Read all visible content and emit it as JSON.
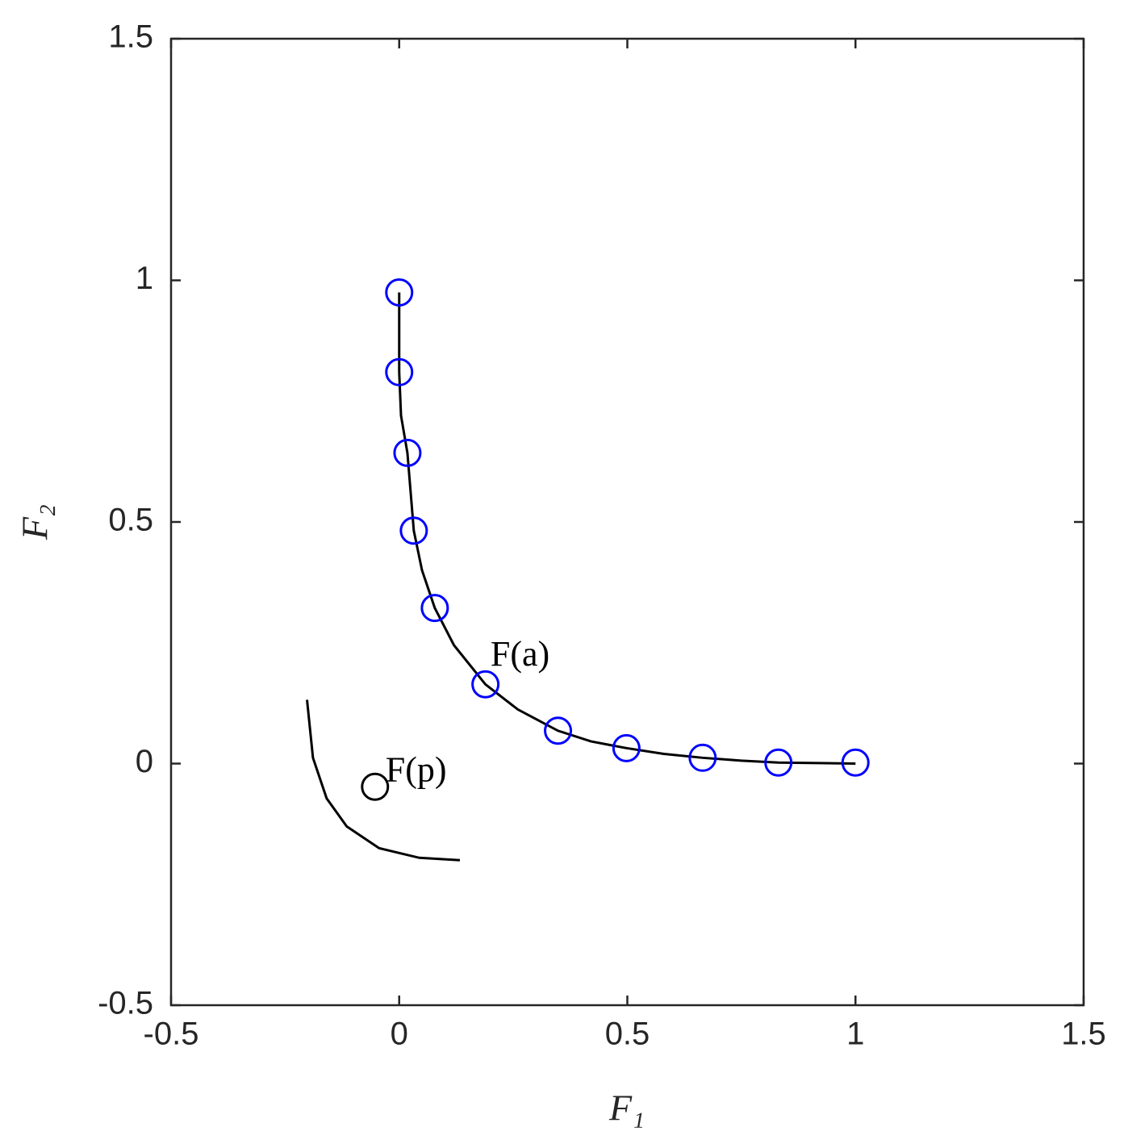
{
  "chart_data": {
    "type": "scatter",
    "xlabel": "F₁",
    "ylabel": "F₂",
    "xlim": [
      -0.5,
      1.5
    ],
    "ylim": [
      -0.5,
      1.5
    ],
    "xticks": [
      -0.5,
      0,
      0.5,
      1,
      1.5
    ],
    "yticks": [
      -0.5,
      0,
      0.5,
      1,
      1.5
    ],
    "series": [
      {
        "mode": "line",
        "color": "#000000",
        "x": [
          0,
          0,
          0.004,
          0.018,
          0.032,
          0.05,
          0.078,
          0.12,
          0.189,
          0.26,
          0.348,
          0.42,
          0.498,
          0.58,
          0.665,
          0.75,
          0.831,
          0.92,
          1.0
        ],
        "y": [
          0.975,
          0.81,
          0.72,
          0.643,
          0.482,
          0.4,
          0.322,
          0.245,
          0.164,
          0.112,
          0.068,
          0.046,
          0.032,
          0.02,
          0.012,
          0.006,
          0.002,
          0.001,
          0
        ]
      },
      {
        "mode": "markers",
        "color": "#0000ff",
        "x": [
          0,
          0,
          0.018,
          0.032,
          0.078,
          0.189,
          0.348,
          0.498,
          0.665,
          0.831,
          1.0
        ],
        "y": [
          0.975,
          0.81,
          0.643,
          0.482,
          0.322,
          0.164,
          0.068,
          0.032,
          0.012,
          0.002,
          0.002
        ]
      },
      {
        "mode": "line",
        "color": "#000000",
        "x": [
          -0.202,
          -0.189,
          -0.159,
          -0.115,
          -0.044,
          0.044,
          0.133
        ],
        "y": [
          0.132,
          0.012,
          -0.072,
          -0.13,
          -0.175,
          -0.195,
          -0.2
        ]
      },
      {
        "mode": "markers",
        "color": "#000000",
        "x": [
          -0.053
        ],
        "y": [
          -0.048
        ]
      }
    ],
    "annotations": [
      {
        "text": "F(a)",
        "x": 0.2,
        "y": 0.22
      },
      {
        "text": "F(p)",
        "x": -0.03,
        "y": -0.02
      }
    ]
  }
}
